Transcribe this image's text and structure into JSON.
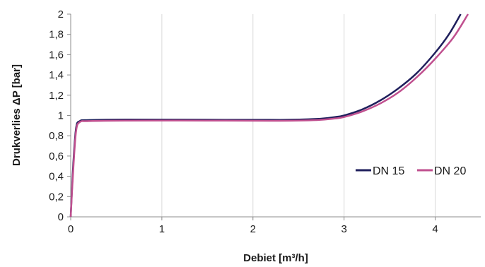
{
  "chart_data": {
    "type": "line",
    "xlabel": "Debiet [m³/h]",
    "ylabel": "Drukverlies ΔP [bar]",
    "xlim": [
      0,
      4.5
    ],
    "ylim": [
      0,
      2
    ],
    "x_ticks": [
      {
        "value": 0,
        "label": "0"
      },
      {
        "value": 1,
        "label": "1"
      },
      {
        "value": 2,
        "label": "2"
      },
      {
        "value": 3,
        "label": "3"
      },
      {
        "value": 4,
        "label": "4"
      }
    ],
    "y_ticks": [
      {
        "value": 0,
        "label": "0"
      },
      {
        "value": 0.2,
        "label": "0,2"
      },
      {
        "value": 0.4,
        "label": "0,4"
      },
      {
        "value": 0.6,
        "label": "0,6"
      },
      {
        "value": 0.8,
        "label": "0,8"
      },
      {
        "value": 1,
        "label": "1"
      },
      {
        "value": 1.2,
        "label": "1,2"
      },
      {
        "value": 1.4,
        "label": "1,4"
      },
      {
        "value": 1.6,
        "label": "1,6"
      },
      {
        "value": 1.8,
        "label": "1,8"
      },
      {
        "value": 2,
        "label": "2"
      }
    ],
    "grid": "vertical",
    "legend_position": "right",
    "series": [
      {
        "name": "DN 15",
        "color": "#1f1f5c",
        "points": [
          [
            0,
            0
          ],
          [
            0.03,
            0.55
          ],
          [
            0.06,
            0.88
          ],
          [
            0.1,
            0.945
          ],
          [
            0.2,
            0.955
          ],
          [
            0.6,
            0.96
          ],
          [
            1.5,
            0.958
          ],
          [
            2.3,
            0.957
          ],
          [
            2.7,
            0.966
          ],
          [
            2.9,
            0.985
          ],
          [
            3.0,
            1.0
          ],
          [
            3.2,
            1.06
          ],
          [
            3.4,
            1.15
          ],
          [
            3.6,
            1.27
          ],
          [
            3.8,
            1.42
          ],
          [
            4.0,
            1.62
          ],
          [
            4.15,
            1.8
          ],
          [
            4.28,
            2.0
          ]
        ]
      },
      {
        "name": "DN 20",
        "color": "#c0508f",
        "points": [
          [
            0,
            0
          ],
          [
            0.03,
            0.5
          ],
          [
            0.06,
            0.85
          ],
          [
            0.1,
            0.935
          ],
          [
            0.2,
            0.945
          ],
          [
            0.6,
            0.95
          ],
          [
            1.5,
            0.95
          ],
          [
            2.3,
            0.948
          ],
          [
            2.7,
            0.955
          ],
          [
            2.9,
            0.97
          ],
          [
            3.0,
            0.985
          ],
          [
            3.2,
            1.04
          ],
          [
            3.4,
            1.12
          ],
          [
            3.6,
            1.23
          ],
          [
            3.8,
            1.38
          ],
          [
            4.0,
            1.56
          ],
          [
            4.2,
            1.77
          ],
          [
            4.36,
            2.0
          ]
        ]
      }
    ]
  }
}
